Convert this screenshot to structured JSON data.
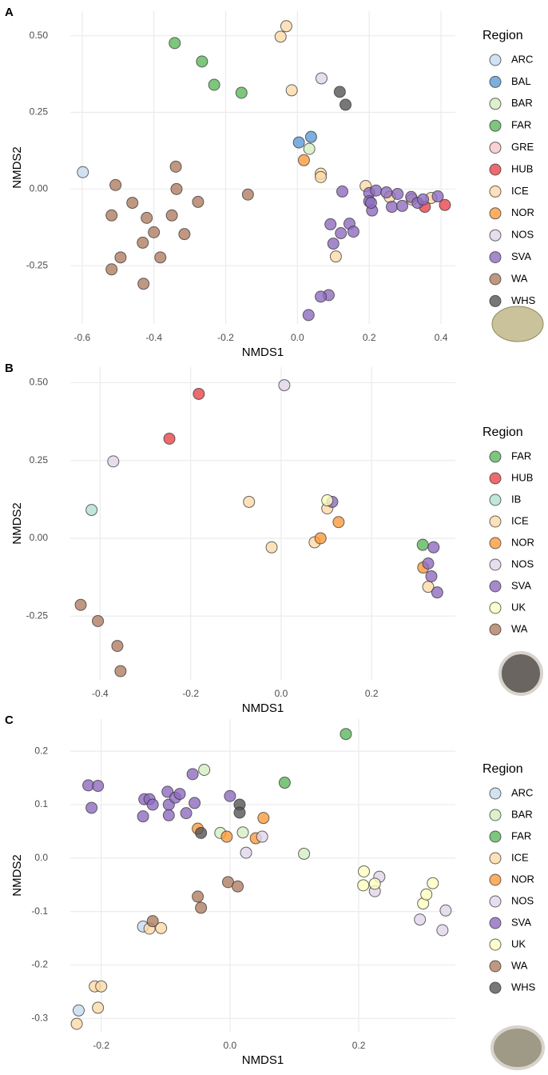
{
  "chart_data": [
    {
      "type": "scatter",
      "panel_label": "A",
      "x_label": "NMDS1",
      "y_label": "NMDS2",
      "legend_title": "Region",
      "grid": true,
      "xlim": [
        -0.633,
        0.44
      ],
      "ylim": [
        -0.44,
        0.58
      ],
      "xticks": [
        -0.6,
        -0.4,
        -0.2,
        {
          "value": 0,
          "label": "0.0"
        },
        0.2,
        0.4
      ],
      "yticks": [
        {
          "value": 0.5,
          "label": "0.50"
        },
        0.25,
        {
          "value": 0,
          "label": "0.00"
        },
        -0.25
      ],
      "series": [
        {
          "name": "ARC",
          "color": "#c6dbef",
          "x": [
            -0.598
          ],
          "y": [
            0.055
          ]
        },
        {
          "name": "BAL",
          "color": "#5b9bd5",
          "x": [
            0.004,
            0.038
          ],
          "y": [
            0.152,
            0.17
          ]
        },
        {
          "name": "BAR",
          "color": "#d4edc0",
          "x": [
            0.033
          ],
          "y": [
            0.131
          ]
        },
        {
          "name": "FAR",
          "color": "#5cb85c",
          "x": [
            -0.342,
            -0.266,
            -0.232,
            -0.156
          ],
          "y": [
            0.476,
            0.416,
            0.34,
            0.314
          ]
        },
        {
          "name": "GRE",
          "color": "#f7c6cc",
          "x": [],
          "y": []
        },
        {
          "name": "HUB",
          "color": "#e8454b",
          "x": [
            0.355,
            0.411
          ],
          "y": [
            -0.058,
            -0.052
          ]
        },
        {
          "name": "ICE",
          "color": "#fdd9a8",
          "x": [
            -0.031,
            -0.047,
            -0.016,
            0.065,
            0.065,
            0.19,
            0.107,
            0.257,
            0.373,
            0.319
          ],
          "y": [
            0.531,
            0.497,
            0.322,
            0.05,
            0.039,
            0.01,
            -0.22,
            -0.026,
            -0.029,
            -0.034
          ]
        },
        {
          "name": "NOR",
          "color": "#fb9a3c",
          "x": [
            0.018
          ],
          "y": [
            0.094
          ]
        },
        {
          "name": "NOS",
          "color": "#e0d4ea",
          "x": [
            0.067
          ],
          "y": [
            0.361
          ]
        },
        {
          "name": "SVA",
          "color": "#8e6bbf",
          "x": [
            0.125,
            0.2,
            0.2,
            0.208,
            0.219,
            0.248,
            0.263,
            0.279,
            0.292,
            0.317,
            0.335,
            0.35,
            0.391,
            0.092,
            0.121,
            0.1,
            0.145,
            0.156,
            0.087,
            0.065,
            0.031,
            0.205
          ],
          "y": [
            -0.008,
            -0.013,
            -0.04,
            -0.07,
            -0.005,
            -0.011,
            -0.058,
            -0.016,
            -0.055,
            -0.026,
            -0.045,
            -0.034,
            -0.024,
            -0.115,
            -0.144,
            -0.178,
            -0.113,
            -0.139,
            -0.346,
            -0.351,
            -0.411,
            -0.045
          ]
        },
        {
          "name": "WA",
          "color": "#b07d62",
          "x": [
            -0.507,
            -0.339,
            -0.337,
            -0.277,
            -0.138,
            -0.46,
            -0.518,
            -0.42,
            -0.35,
            -0.4,
            -0.315,
            -0.431,
            -0.493,
            -0.382,
            -0.518,
            -0.429
          ],
          "y": [
            0.013,
            0.073,
            0.0,
            -0.042,
            -0.018,
            -0.045,
            -0.086,
            -0.094,
            -0.086,
            -0.141,
            -0.147,
            -0.175,
            -0.223,
            -0.223,
            -0.262,
            -0.309
          ]
        },
        {
          "name": "WHS",
          "color": "#555555",
          "x": [
            0.118,
            0.134
          ],
          "y": [
            0.317,
            0.275
          ]
        }
      ]
    },
    {
      "type": "scatter",
      "panel_label": "B",
      "x_label": "NMDS1",
      "y_label": "NMDS2",
      "legend_title": "Region",
      "grid": true,
      "xlim": [
        -0.466,
        0.385
      ],
      "ylim": [
        -0.455,
        0.55
      ],
      "xticks": [
        -0.4,
        -0.2,
        {
          "value": 0,
          "label": "0.0"
        },
        0.2
      ],
      "yticks": [
        {
          "value": 0.5,
          "label": "0.50"
        },
        0.25,
        {
          "value": 0,
          "label": "0.00"
        },
        -0.25
      ],
      "series": [
        {
          "name": "FAR",
          "color": "#5cb85c",
          "x": [
            0.313
          ],
          "y": [
            -0.021
          ]
        },
        {
          "name": "HUB",
          "color": "#e8454b",
          "x": [
            -0.182,
            -0.247
          ],
          "y": [
            0.464,
            0.32
          ]
        },
        {
          "name": "IB",
          "color": "#b2e0d6",
          "x": [
            -0.419
          ],
          "y": [
            0.091
          ]
        },
        {
          "name": "ICE",
          "color": "#fdd9a8",
          "x": [
            -0.071,
            0.102,
            0.074,
            -0.021,
            0.325
          ],
          "y": [
            0.117,
            0.096,
            -0.013,
            -0.029,
            -0.156
          ]
        },
        {
          "name": "NOR",
          "color": "#fb9a3c",
          "x": [
            0.087,
            0.127,
            0.314
          ],
          "y": [
            0.0,
            0.052,
            -0.094
          ]
        },
        {
          "name": "NOS",
          "color": "#e0d4ea",
          "x": [
            0.007,
            -0.371
          ],
          "y": [
            0.492,
            0.247
          ]
        },
        {
          "name": "SVA",
          "color": "#8e6bbf",
          "x": [
            0.113,
            0.337,
            0.325,
            0.332,
            0.345
          ],
          "y": [
            0.117,
            -0.029,
            -0.081,
            -0.122,
            -0.174
          ]
        },
        {
          "name": "UK",
          "color": "#ffffbf",
          "x": [
            0.102
          ],
          "y": [
            0.122
          ]
        },
        {
          "name": "WA",
          "color": "#b07d62",
          "x": [
            -0.443,
            -0.405,
            -0.362,
            -0.355
          ],
          "y": [
            -0.214,
            -0.266,
            -0.346,
            -0.427
          ]
        }
      ]
    },
    {
      "type": "scatter",
      "panel_label": "C",
      "x_label": "NMDS1",
      "y_label": "NMDS2",
      "legend_title": "Region",
      "grid": true,
      "xlim": [
        -0.248,
        0.35
      ],
      "ylim": [
        -0.325,
        0.26
      ],
      "xticks": [
        -0.2,
        {
          "value": 0,
          "label": "0.0"
        },
        0.2
      ],
      "yticks": [
        0.2,
        0.1,
        {
          "value": 0,
          "label": "0.0"
        },
        -0.1,
        -0.2,
        -0.3
      ],
      "series": [
        {
          "name": "ARC",
          "color": "#c6dbef",
          "x": [
            -0.135,
            -0.235
          ],
          "y": [
            -0.128,
            -0.285
          ]
        },
        {
          "name": "BAR",
          "color": "#d4edc0",
          "x": [
            -0.04,
            -0.015,
            0.02,
            0.115
          ],
          "y": [
            0.165,
            0.047,
            0.048,
            0.008
          ]
        },
        {
          "name": "FAR",
          "color": "#5cb85c",
          "x": [
            0.18,
            0.085
          ],
          "y": [
            0.232,
            0.141
          ]
        },
        {
          "name": "ICE",
          "color": "#fdd9a8",
          "x": [
            -0.125,
            -0.107,
            -0.21,
            -0.2,
            -0.205,
            -0.238
          ],
          "y": [
            -0.132,
            -0.131,
            -0.24,
            -0.24,
            -0.28,
            -0.31
          ]
        },
        {
          "name": "NOR",
          "color": "#fb9a3c",
          "x": [
            -0.05,
            -0.005,
            0.04,
            0.052
          ],
          "y": [
            0.055,
            0.04,
            0.037,
            0.075
          ]
        },
        {
          "name": "NOS",
          "color": "#e0d4ea",
          "x": [
            0.225,
            0.232,
            0.295,
            0.33,
            0.335,
            0.05,
            0.025
          ],
          "y": [
            -0.062,
            -0.035,
            -0.115,
            -0.135,
            -0.098,
            0.04,
            0.01
          ]
        },
        {
          "name": "SVA",
          "color": "#8e6bbf",
          "x": [
            -0.22,
            -0.205,
            -0.215,
            -0.135,
            -0.133,
            -0.125,
            -0.12,
            -0.097,
            -0.095,
            -0.095,
            -0.085,
            -0.078,
            -0.068,
            -0.058,
            -0.055,
            0.0
          ],
          "y": [
            0.136,
            0.135,
            0.094,
            0.078,
            0.11,
            0.11,
            0.1,
            0.124,
            0.1,
            0.08,
            0.113,
            0.12,
            0.084,
            0.157,
            0.103,
            0.116
          ]
        },
        {
          "name": "UK",
          "color": "#ffffbf",
          "x": [
            0.208,
            0.207,
            0.225,
            0.3,
            0.305,
            0.315
          ],
          "y": [
            -0.025,
            -0.051,
            -0.048,
            -0.085,
            -0.068,
            -0.047
          ]
        },
        {
          "name": "WA",
          "color": "#b07d62",
          "x": [
            -0.12,
            -0.05,
            -0.045,
            -0.003,
            0.012
          ],
          "y": [
            -0.118,
            -0.072,
            -0.093,
            -0.045,
            -0.053
          ]
        },
        {
          "name": "WHS",
          "color": "#555555",
          "x": [
            -0.045,
            0.015,
            0.015
          ],
          "y": [
            0.047,
            0.1,
            0.085
          ]
        }
      ]
    }
  ]
}
